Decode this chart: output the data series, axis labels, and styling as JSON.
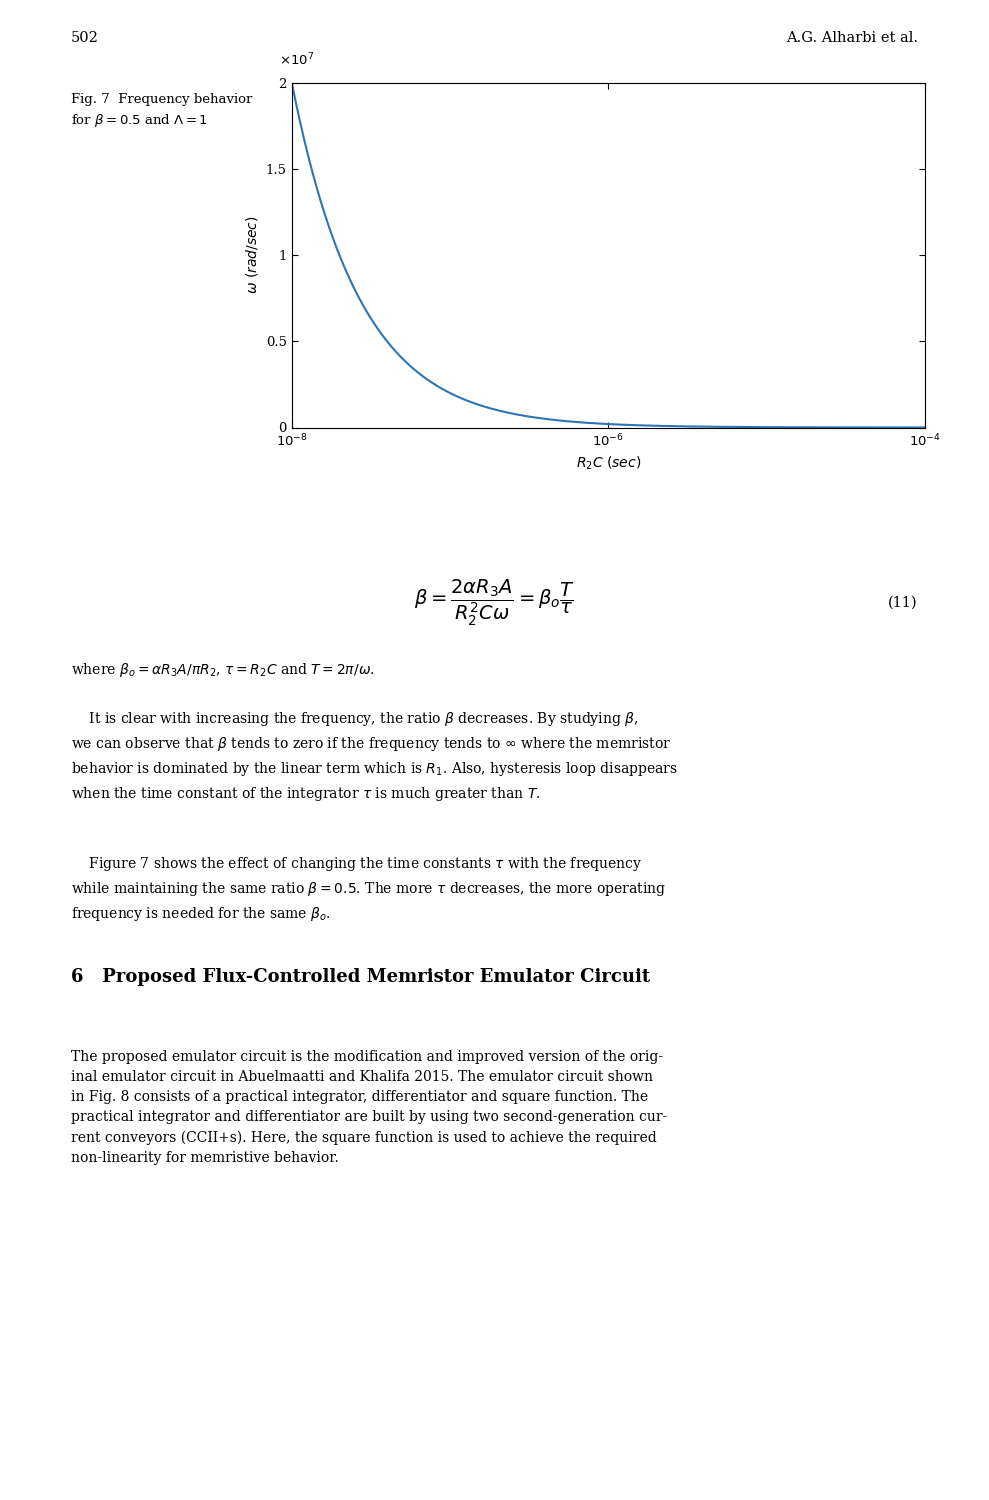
{
  "page_number": "502",
  "author": "A.G. Alharbi et al.",
  "line_color": "#2e75b6",
  "line_width": 1.5,
  "eq_number": "(11)",
  "bg_color": "#ffffff",
  "text_color": "#000000",
  "plot_yticks": [
    0,
    5000000,
    10000000,
    15000000,
    20000000
  ],
  "plot_ytick_labels": [
    "0",
    "0.5",
    "1",
    "1.5",
    "2"
  ],
  "link_color": "#3366cc"
}
